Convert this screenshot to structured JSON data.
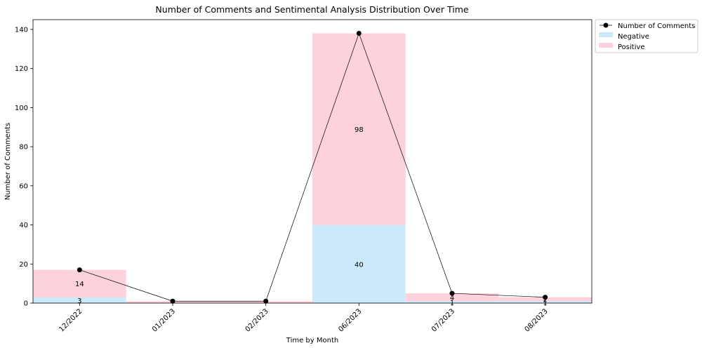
{
  "chart_data": {
    "type": "bar",
    "title": "Number of Comments and Sentimental Analysis Distribution Over Time",
    "xlabel": "Time by Month",
    "ylabel": "Number of Comments",
    "categories": [
      "12/2022",
      "01/2023",
      "02/2023",
      "06/2023",
      "07/2023",
      "08/2023"
    ],
    "ylim": [
      0,
      145
    ],
    "yticks": [
      0,
      20,
      40,
      60,
      80,
      100,
      120,
      140
    ],
    "stacked": true,
    "series": [
      {
        "name": "Negative",
        "values": [
          3,
          0,
          0,
          40,
          1,
          1
        ],
        "color": "#cce9fb"
      },
      {
        "name": "Positive",
        "values": [
          14,
          1,
          1,
          98,
          4,
          2
        ],
        "color": "#fdd2dc"
      }
    ],
    "bar_labels": [
      [
        "3",
        "",
        "",
        "40",
        "1",
        "1"
      ],
      [
        "14",
        "",
        "",
        "98",
        "4",
        "2"
      ]
    ],
    "line": {
      "name": "Number of Comments",
      "values": [
        17,
        1,
        1,
        138,
        5,
        3
      ],
      "color": "#000000"
    },
    "legend": {
      "placement": "outside-top-right",
      "items": [
        "Number of Comments",
        "Negative",
        "Positive"
      ]
    },
    "grid": false
  }
}
